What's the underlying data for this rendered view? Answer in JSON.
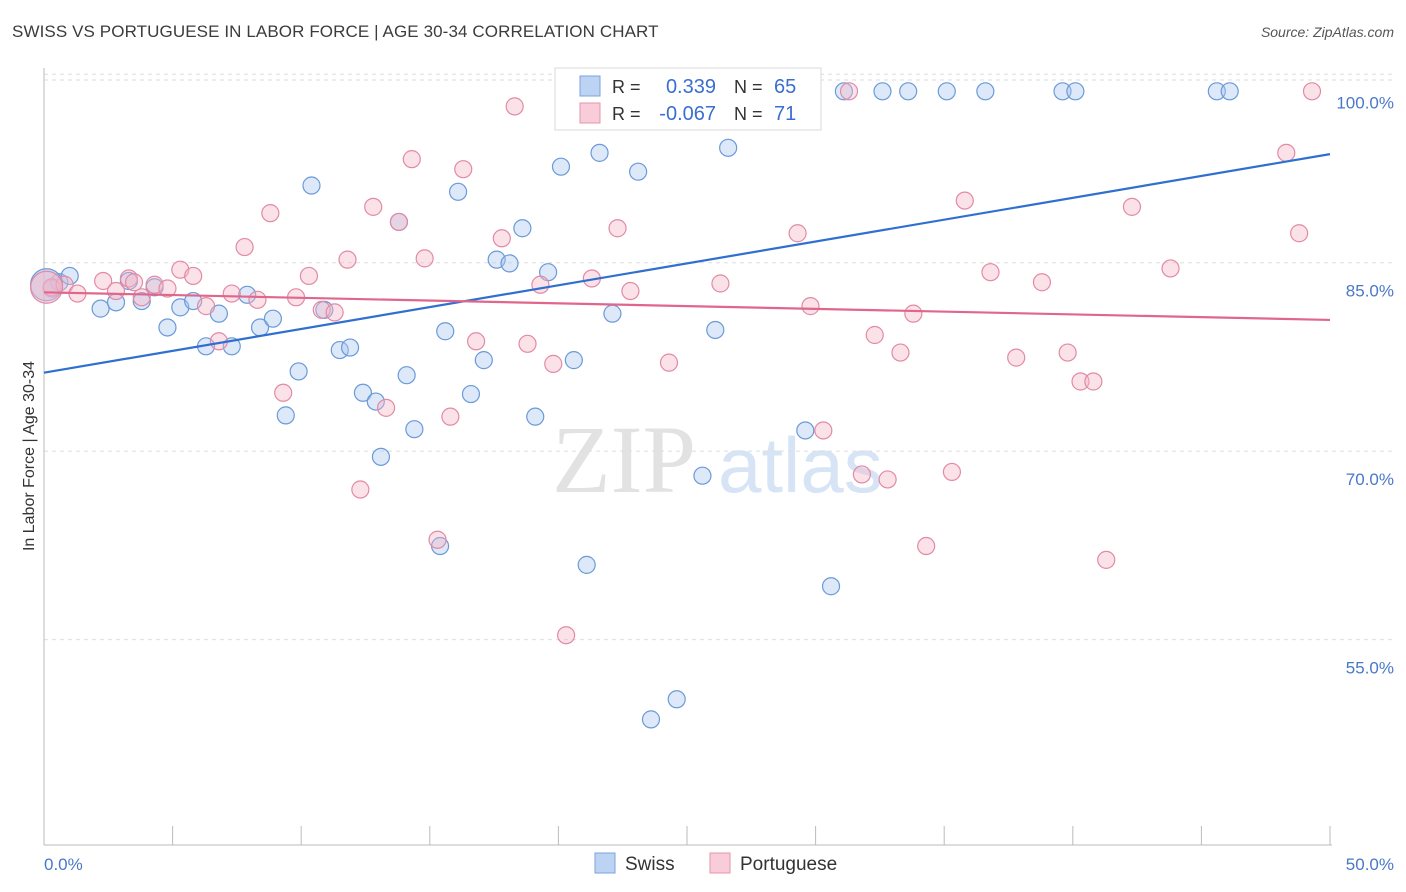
{
  "title": "SWISS VS PORTUGUESE IN LABOR FORCE | AGE 30-34 CORRELATION CHART",
  "source": "Source: ZipAtlas.com",
  "watermark": {
    "zip": "ZIP",
    "atlas": "atlas"
  },
  "legend_box": {
    "rows": [
      {
        "r_label": "R =",
        "r_value": "0.339",
        "n_label": "N =",
        "n_value": "65",
        "color": "#a9c6f0"
      },
      {
        "r_label": "R =",
        "r_value": "-0.067",
        "n_label": "N =",
        "n_value": "71",
        "color": "#f5b6c8"
      }
    ]
  },
  "bottom_legend": [
    {
      "label": "Swiss",
      "color": "#a9c6f0"
    },
    {
      "label": "Portuguese",
      "color": "#f5b6c8"
    }
  ],
  "chart_data": {
    "type": "scatter",
    "title": "SWISS VS PORTUGUESE IN LABOR FORCE | AGE 30-34 CORRELATION CHART",
    "xlabel": "",
    "ylabel": "In Labor Force | Age 30-34",
    "xlim": [
      0,
      50
    ],
    "ylim": [
      40,
      102
    ],
    "x_tick_labels": [
      "0.0%",
      "50.0%"
    ],
    "y_ticks": [
      55,
      70,
      85,
      100
    ],
    "y_tick_labels": [
      "55.0%",
      "70.0%",
      "85.0%",
      "100.0%"
    ],
    "grid": true,
    "legend_position": "top-center",
    "series": [
      {
        "name": "Swiss",
        "color": "#a9c6f0",
        "stroke": "#6a9ad8",
        "trend": {
          "x": [
            0,
            50
          ],
          "y": [
            77.6,
            95.0
          ],
          "color": "#2f6fd0"
        },
        "points": [
          [
            0.3,
            84.3
          ],
          [
            0.6,
            84.8
          ],
          [
            1.0,
            85.3
          ],
          [
            2.2,
            82.7
          ],
          [
            2.8,
            83.2
          ],
          [
            3.3,
            84.9
          ],
          [
            3.8,
            83.3
          ],
          [
            4.3,
            84.4
          ],
          [
            4.8,
            81.2
          ],
          [
            5.3,
            82.8
          ],
          [
            5.8,
            83.3
          ],
          [
            6.3,
            79.7
          ],
          [
            6.8,
            82.3
          ],
          [
            7.3,
            79.7
          ],
          [
            7.9,
            83.8
          ],
          [
            8.4,
            81.2
          ],
          [
            8.9,
            81.9
          ],
          [
            9.4,
            74.2
          ],
          [
            9.9,
            77.7
          ],
          [
            10.4,
            92.5
          ],
          [
            10.9,
            82.6
          ],
          [
            11.5,
            79.4
          ],
          [
            11.9,
            79.6
          ],
          [
            12.4,
            76.0
          ],
          [
            12.9,
            75.3
          ],
          [
            13.1,
            70.9
          ],
          [
            13.8,
            89.6
          ],
          [
            14.1,
            77.4
          ],
          [
            14.4,
            73.1
          ],
          [
            15.4,
            63.8
          ],
          [
            15.6,
            80.9
          ],
          [
            16.1,
            92.0
          ],
          [
            16.6,
            75.9
          ],
          [
            17.1,
            78.6
          ],
          [
            17.6,
            86.6
          ],
          [
            18.1,
            86.3
          ],
          [
            18.6,
            89.1
          ],
          [
            19.1,
            74.1
          ],
          [
            19.6,
            85.6
          ],
          [
            20.1,
            94.0
          ],
          [
            20.6,
            78.6
          ],
          [
            21.1,
            62.3
          ],
          [
            21.6,
            95.1
          ],
          [
            22.1,
            82.3
          ],
          [
            22.6,
            100.0
          ],
          [
            23.1,
            93.6
          ],
          [
            23.6,
            50.0
          ],
          [
            24.6,
            51.6
          ],
          [
            25.1,
            100.0
          ],
          [
            25.6,
            69.4
          ],
          [
            26.1,
            81.0
          ],
          [
            26.6,
            95.5
          ],
          [
            27.1,
            100.0
          ],
          [
            29.6,
            73.0
          ],
          [
            30.6,
            60.6
          ],
          [
            31.1,
            100.0
          ],
          [
            32.6,
            100.0
          ],
          [
            33.6,
            100.0
          ],
          [
            35.1,
            100.0
          ],
          [
            36.6,
            100.0
          ],
          [
            39.6,
            100.0
          ],
          [
            40.1,
            100.0
          ],
          [
            45.6,
            100.0
          ],
          [
            46.1,
            100.0
          ],
          [
            0.1,
            84.6
          ]
        ]
      },
      {
        "name": "Portuguese",
        "color": "#f5b6c8",
        "stroke": "#e28aa4",
        "trend": {
          "x": [
            0,
            50
          ],
          "y": [
            84.0,
            81.8
          ],
          "color": "#e0668c"
        },
        "points": [
          [
            0.3,
            84.4
          ],
          [
            0.8,
            84.6
          ],
          [
            1.3,
            83.9
          ],
          [
            2.3,
            84.9
          ],
          [
            2.8,
            84.1
          ],
          [
            3.3,
            85.1
          ],
          [
            3.8,
            83.6
          ],
          [
            4.3,
            84.6
          ],
          [
            4.8,
            84.3
          ],
          [
            5.3,
            85.8
          ],
          [
            5.8,
            85.3
          ],
          [
            6.3,
            82.9
          ],
          [
            6.8,
            80.1
          ],
          [
            7.3,
            83.9
          ],
          [
            7.8,
            87.6
          ],
          [
            8.3,
            83.4
          ],
          [
            8.8,
            90.3
          ],
          [
            9.3,
            76.0
          ],
          [
            9.8,
            83.6
          ],
          [
            10.3,
            85.3
          ],
          [
            10.8,
            82.6
          ],
          [
            11.3,
            82.4
          ],
          [
            11.8,
            86.6
          ],
          [
            12.3,
            68.3
          ],
          [
            12.8,
            90.8
          ],
          [
            13.3,
            74.8
          ],
          [
            13.8,
            89.6
          ],
          [
            14.3,
            94.6
          ],
          [
            14.8,
            86.7
          ],
          [
            15.3,
            64.3
          ],
          [
            15.8,
            74.1
          ],
          [
            16.3,
            93.8
          ],
          [
            16.8,
            80.1
          ],
          [
            17.8,
            88.3
          ],
          [
            18.3,
            98.8
          ],
          [
            18.8,
            79.9
          ],
          [
            19.3,
            84.6
          ],
          [
            19.8,
            78.3
          ],
          [
            20.3,
            56.7
          ],
          [
            21.3,
            85.1
          ],
          [
            22.3,
            89.1
          ],
          [
            22.8,
            84.1
          ],
          [
            24.3,
            78.4
          ],
          [
            25.3,
            100.0
          ],
          [
            26.3,
            84.7
          ],
          [
            29.3,
            88.7
          ],
          [
            29.8,
            82.9
          ],
          [
            30.3,
            73.0
          ],
          [
            31.3,
            100.0
          ],
          [
            31.8,
            69.5
          ],
          [
            32.3,
            80.6
          ],
          [
            32.8,
            69.1
          ],
          [
            33.3,
            79.2
          ],
          [
            33.8,
            82.3
          ],
          [
            34.3,
            63.8
          ],
          [
            35.3,
            69.7
          ],
          [
            35.8,
            91.3
          ],
          [
            36.8,
            85.6
          ],
          [
            37.8,
            78.8
          ],
          [
            38.8,
            84.8
          ],
          [
            39.8,
            79.2
          ],
          [
            40.3,
            76.9
          ],
          [
            40.8,
            76.9
          ],
          [
            41.3,
            62.7
          ],
          [
            42.3,
            90.8
          ],
          [
            43.8,
            85.9
          ],
          [
            48.3,
            95.1
          ],
          [
            48.8,
            88.7
          ],
          [
            49.3,
            100.0
          ],
          [
            3.5,
            84.8
          ],
          [
            0.1,
            84.4
          ]
        ]
      }
    ]
  }
}
